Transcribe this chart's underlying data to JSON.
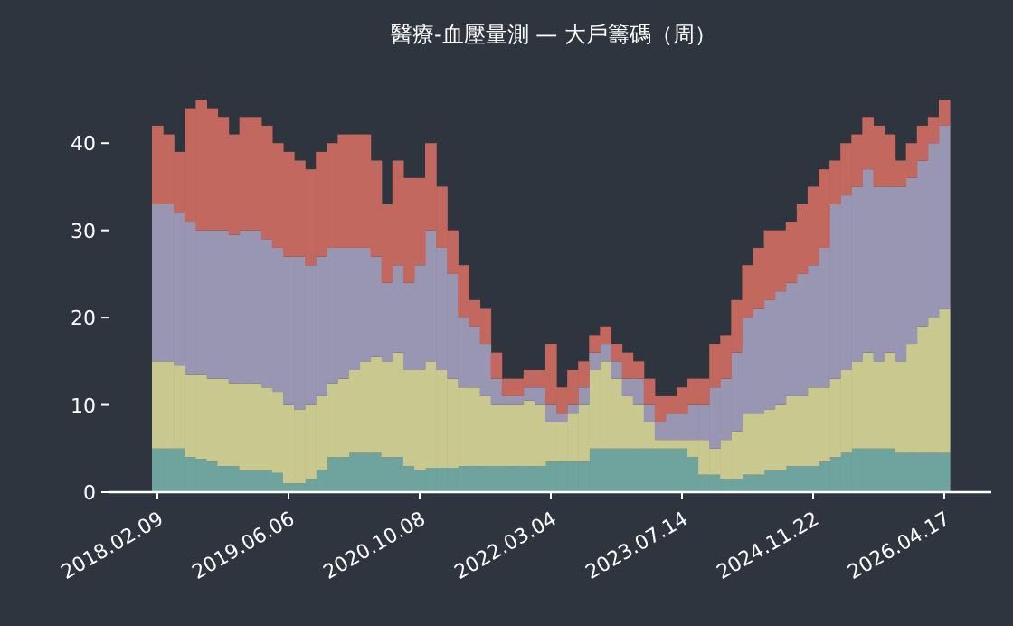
{
  "chart_data": {
    "type": "bar",
    "stacked": true,
    "title": "醫療-血壓量測 — 大戶籌碼（周）",
    "categories": [
      "2018.02.09",
      null,
      null,
      null,
      null,
      null,
      null,
      null,
      null,
      null,
      null,
      null,
      "2019.06.06",
      null,
      null,
      null,
      null,
      null,
      null,
      null,
      null,
      null,
      null,
      null,
      "2020.10.08",
      null,
      null,
      null,
      null,
      null,
      null,
      null,
      null,
      null,
      null,
      null,
      "2022.03.04",
      null,
      null,
      null,
      null,
      null,
      null,
      null,
      null,
      null,
      null,
      null,
      "2023.07.14",
      null,
      null,
      null,
      null,
      null,
      null,
      null,
      null,
      null,
      null,
      null,
      "2024.11.22",
      null,
      null,
      null,
      null,
      null,
      null,
      null,
      null,
      null,
      null,
      null,
      "2026.04.17"
    ],
    "ylim": [
      0,
      45
    ],
    "yticks": [
      0,
      10,
      20,
      30,
      40
    ],
    "grid": false,
    "series": [
      {
        "color": "#6fa39e",
        "values": [
          5,
          5,
          5,
          4,
          3.8,
          3.5,
          3,
          3,
          2.5,
          2.5,
          2.5,
          2.2,
          1,
          1,
          1.5,
          2.5,
          4,
          4,
          4.5,
          4.5,
          4.5,
          4,
          4,
          3,
          2.5,
          2.8,
          2.8,
          2.8,
          3,
          3,
          3,
          3,
          3,
          3,
          3,
          3,
          3.5,
          3.5,
          3.5,
          3.5,
          5,
          5,
          5,
          5,
          5,
          5,
          5,
          5,
          5,
          4,
          2,
          2,
          1.5,
          1.5,
          2,
          2,
          2.5,
          2.5,
          3,
          3,
          3,
          3.5,
          4,
          4.5,
          5,
          5,
          5,
          5,
          4.5,
          4.5,
          4.5,
          4.5,
          4.5
        ]
      },
      {
        "color": "#c9c98f",
        "values": [
          10,
          10,
          9.5,
          9.5,
          9.7,
          9.5,
          10,
          9.5,
          10,
          10,
          9.5,
          9.3,
          9,
          8.5,
          8.5,
          8.5,
          8.5,
          9,
          9.5,
          10.5,
          11,
          11,
          12,
          11,
          11.5,
          12.2,
          11.2,
          10.2,
          9,
          9,
          8,
          7,
          7,
          7,
          7.5,
          7,
          4.5,
          4.5,
          5.5,
          6.5,
          9,
          10,
          8,
          6,
          5,
          3,
          1,
          1,
          1,
          2,
          4,
          3,
          4.5,
          5.5,
          7,
          7,
          7,
          7.5,
          8,
          8,
          9,
          8.5,
          9,
          9.5,
          10,
          11,
          10,
          11,
          10.5,
          12.5,
          14.5,
          15.5,
          16.5
        ]
      },
      {
        "color": "#9896b2",
        "values": [
          18,
          18,
          17.5,
          17.5,
          16.5,
          17,
          17,
          17,
          17.5,
          17.5,
          17,
          16.5,
          17,
          17.5,
          16,
          16,
          15.5,
          15,
          14,
          13,
          11.5,
          9,
          10,
          10,
          12,
          15,
          14,
          12,
          8,
          7,
          6,
          3,
          1,
          1,
          1.5,
          2,
          2,
          1,
          1,
          2,
          2,
          2,
          2,
          2,
          3,
          2,
          2,
          3,
          3,
          4,
          4,
          7,
          7,
          9,
          11,
          12,
          12.5,
          13,
          13,
          14,
          14,
          16,
          20,
          20,
          20,
          21,
          20,
          19,
          20,
          19,
          19,
          20,
          21
        ]
      },
      {
        "color": "#c3685e",
        "values": [
          9,
          8,
          7,
          13,
          15,
          14,
          13,
          11.5,
          13,
          13,
          13,
          12,
          12,
          11,
          11,
          12,
          12,
          13,
          13,
          13,
          11,
          9,
          12,
          12,
          10,
          10,
          7,
          5,
          6,
          3,
          4,
          3,
          2,
          2,
          2,
          2,
          7,
          3,
          4,
          3,
          2,
          2,
          2,
          3,
          2,
          3,
          3,
          2,
          3,
          3,
          3,
          5,
          5,
          6,
          6,
          7,
          8,
          7,
          7,
          8,
          9,
          9,
          5,
          6,
          6,
          6,
          7,
          6,
          3,
          4,
          4,
          3,
          3
        ]
      }
    ]
  }
}
